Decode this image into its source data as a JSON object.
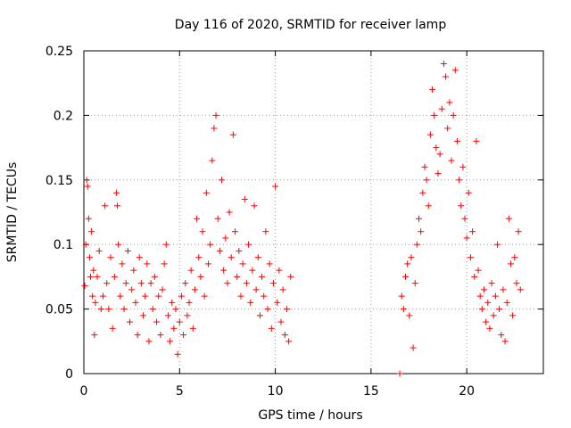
{
  "chart_data": {
    "type": "scatter",
    "title": "Day 116 of 2020, SRMTID for receiver lamp",
    "xlabel": "GPS time / hours",
    "ylabel": "SRMTID / TECUs",
    "xlim": [
      0,
      24
    ],
    "ylim": [
      0,
      0.25
    ],
    "xticks": [
      0,
      5,
      10,
      15,
      20
    ],
    "xtick_labels": [
      "0",
      "5",
      "10",
      "15",
      "20"
    ],
    "yticks": [
      0,
      0.05,
      0.1,
      0.15,
      0.2,
      0.25
    ],
    "ytick_labels": [
      "0",
      "0.05",
      "0.1",
      "0.15",
      "0.2",
      "0.25"
    ],
    "grid": true,
    "marker": "+",
    "color": "#ff0000",
    "series": [
      {
        "name": "SRMTID",
        "points": [
          [
            0.05,
            0.068
          ],
          [
            0.1,
            0.1
          ],
          [
            0.15,
            0.15
          ],
          [
            0.2,
            0.145
          ],
          [
            0.25,
            0.12
          ],
          [
            0.3,
            0.09
          ],
          [
            0.35,
            0.075
          ],
          [
            0.4,
            0.11
          ],
          [
            0.45,
            0.06
          ],
          [
            0.5,
            0.08
          ],
          [
            0.55,
            0.03
          ],
          [
            0.6,
            0.055
          ],
          [
            0.7,
            0.075
          ],
          [
            0.8,
            0.095
          ],
          [
            0.9,
            0.05
          ],
          [
            1.0,
            0.06
          ],
          [
            1.1,
            0.13
          ],
          [
            1.2,
            0.07
          ],
          [
            1.3,
            0.05
          ],
          [
            1.4,
            0.09
          ],
          [
            1.5,
            0.035
          ],
          [
            1.6,
            0.075
          ],
          [
            1.7,
            0.14
          ],
          [
            1.75,
            0.13
          ],
          [
            1.8,
            0.1
          ],
          [
            1.9,
            0.06
          ],
          [
            2.0,
            0.085
          ],
          [
            2.1,
            0.05
          ],
          [
            2.2,
            0.07
          ],
          [
            2.3,
            0.095
          ],
          [
            2.4,
            0.04
          ],
          [
            2.5,
            0.065
          ],
          [
            2.6,
            0.08
          ],
          [
            2.7,
            0.055
          ],
          [
            2.8,
            0.03
          ],
          [
            2.9,
            0.09
          ],
          [
            3.0,
            0.07
          ],
          [
            3.1,
            0.045
          ],
          [
            3.2,
            0.06
          ],
          [
            3.3,
            0.085
          ],
          [
            3.4,
            0.025
          ],
          [
            3.5,
            0.07
          ],
          [
            3.6,
            0.05
          ],
          [
            3.7,
            0.075
          ],
          [
            3.8,
            0.04
          ],
          [
            3.9,
            0.06
          ],
          [
            4.0,
            0.03
          ],
          [
            4.1,
            0.065
          ],
          [
            4.2,
            0.085
          ],
          [
            4.3,
            0.1
          ],
          [
            4.4,
            0.045
          ],
          [
            4.5,
            0.025
          ],
          [
            4.6,
            0.055
          ],
          [
            4.7,
            0.035
          ],
          [
            4.8,
            0.05
          ],
          [
            4.9,
            0.015
          ],
          [
            5.0,
            0.04
          ],
          [
            5.1,
            0.06
          ],
          [
            5.2,
            0.03
          ],
          [
            5.3,
            0.07
          ],
          [
            5.4,
            0.045
          ],
          [
            5.5,
            0.055
          ],
          [
            5.6,
            0.08
          ],
          [
            5.7,
            0.035
          ],
          [
            5.8,
            0.065
          ],
          [
            5.9,
            0.12
          ],
          [
            6.0,
            0.09
          ],
          [
            6.1,
            0.075
          ],
          [
            6.2,
            0.11
          ],
          [
            6.3,
            0.06
          ],
          [
            6.4,
            0.14
          ],
          [
            6.5,
            0.085
          ],
          [
            6.6,
            0.1
          ],
          [
            6.7,
            0.165
          ],
          [
            6.8,
            0.19
          ],
          [
            6.9,
            0.2
          ],
          [
            7.0,
            0.12
          ],
          [
            7.1,
            0.095
          ],
          [
            7.2,
            0.15
          ],
          [
            7.3,
            0.08
          ],
          [
            7.4,
            0.105
          ],
          [
            7.5,
            0.07
          ],
          [
            7.6,
            0.125
          ],
          [
            7.7,
            0.09
          ],
          [
            7.8,
            0.185
          ],
          [
            7.9,
            0.11
          ],
          [
            8.0,
            0.075
          ],
          [
            8.1,
            0.095
          ],
          [
            8.2,
            0.06
          ],
          [
            8.3,
            0.085
          ],
          [
            8.4,
            0.135
          ],
          [
            8.5,
            0.07
          ],
          [
            8.6,
            0.1
          ],
          [
            8.7,
            0.055
          ],
          [
            8.8,
            0.08
          ],
          [
            8.9,
            0.13
          ],
          [
            9.0,
            0.065
          ],
          [
            9.1,
            0.09
          ],
          [
            9.2,
            0.045
          ],
          [
            9.3,
            0.075
          ],
          [
            9.4,
            0.06
          ],
          [
            9.5,
            0.11
          ],
          [
            9.6,
            0.05
          ],
          [
            9.7,
            0.085
          ],
          [
            9.8,
            0.035
          ],
          [
            9.9,
            0.07
          ],
          [
            10.0,
            0.145
          ],
          [
            10.1,
            0.055
          ],
          [
            10.2,
            0.08
          ],
          [
            10.3,
            0.04
          ],
          [
            10.4,
            0.065
          ],
          [
            10.5,
            0.03
          ],
          [
            10.6,
            0.05
          ],
          [
            10.7,
            0.025
          ],
          [
            10.8,
            0.075
          ],
          [
            16.5,
            0.0
          ],
          [
            16.6,
            0.06
          ],
          [
            16.7,
            0.05
          ],
          [
            16.8,
            0.075
          ],
          [
            16.9,
            0.085
          ],
          [
            17.0,
            0.045
          ],
          [
            17.1,
            0.09
          ],
          [
            17.2,
            0.02
          ],
          [
            17.3,
            0.07
          ],
          [
            17.4,
            0.1
          ],
          [
            17.5,
            0.12
          ],
          [
            17.6,
            0.11
          ],
          [
            17.7,
            0.14
          ],
          [
            17.8,
            0.16
          ],
          [
            17.9,
            0.15
          ],
          [
            18.0,
            0.13
          ],
          [
            18.1,
            0.185
          ],
          [
            18.2,
            0.22
          ],
          [
            18.3,
            0.2
          ],
          [
            18.4,
            0.175
          ],
          [
            18.5,
            0.155
          ],
          [
            18.6,
            0.17
          ],
          [
            18.7,
            0.205
          ],
          [
            18.8,
            0.24
          ],
          [
            18.9,
            0.23
          ],
          [
            19.0,
            0.19
          ],
          [
            19.1,
            0.21
          ],
          [
            19.2,
            0.165
          ],
          [
            19.3,
            0.2
          ],
          [
            19.4,
            0.235
          ],
          [
            19.5,
            0.18
          ],
          [
            19.6,
            0.15
          ],
          [
            19.7,
            0.13
          ],
          [
            19.8,
            0.16
          ],
          [
            19.9,
            0.12
          ],
          [
            20.0,
            0.105
          ],
          [
            20.1,
            0.14
          ],
          [
            20.2,
            0.09
          ],
          [
            20.3,
            0.11
          ],
          [
            20.4,
            0.075
          ],
          [
            20.5,
            0.18
          ],
          [
            20.6,
            0.08
          ],
          [
            20.7,
            0.06
          ],
          [
            20.8,
            0.05
          ],
          [
            20.9,
            0.065
          ],
          [
            21.0,
            0.04
          ],
          [
            21.1,
            0.055
          ],
          [
            21.2,
            0.035
          ],
          [
            21.3,
            0.07
          ],
          [
            21.4,
            0.045
          ],
          [
            21.5,
            0.06
          ],
          [
            21.6,
            0.1
          ],
          [
            21.7,
            0.05
          ],
          [
            21.8,
            0.03
          ],
          [
            21.9,
            0.065
          ],
          [
            22.0,
            0.025
          ],
          [
            22.1,
            0.055
          ],
          [
            22.2,
            0.12
          ],
          [
            22.3,
            0.085
          ],
          [
            22.4,
            0.045
          ],
          [
            22.5,
            0.09
          ],
          [
            22.6,
            0.07
          ],
          [
            22.7,
            0.11
          ],
          [
            22.8,
            0.065
          ]
        ]
      }
    ]
  }
}
